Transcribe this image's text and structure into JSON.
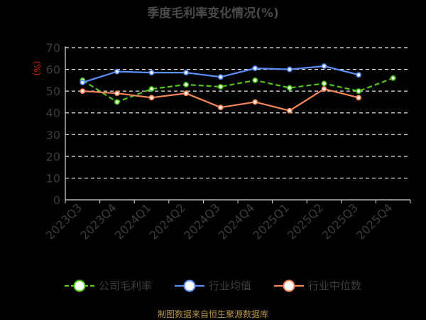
{
  "chart_data": {
    "type": "line",
    "title": "季度毛利率变化情况(%)",
    "ylabel": "(%)",
    "categories": [
      "2023Q3",
      "2023Q4",
      "2024Q1",
      "2024Q2",
      "2024Q3",
      "2024Q4",
      "2025Q1",
      "2025Q2",
      "2025Q3",
      "2025Q4"
    ],
    "yticks": [
      0,
      10,
      20,
      30,
      40,
      50,
      60,
      70
    ],
    "ylim": [
      0,
      70
    ],
    "grid": true,
    "legend_position": "bottom",
    "series": [
      {
        "name": "公司毛利率",
        "color": "#52c41a",
        "values": [
          55,
          45,
          51,
          53,
          52,
          55,
          51.5,
          53.5,
          50,
          56
        ]
      },
      {
        "name": "行业均值",
        "color": "#5b8ff9",
        "values": [
          54,
          59,
          58.5,
          58.5,
          56.5,
          60.5,
          60,
          61.5,
          57.5,
          null
        ]
      },
      {
        "name": "行业中位数",
        "color": "#f6875a",
        "values": [
          50,
          49,
          47,
          49,
          42.5,
          45,
          41,
          51,
          47,
          null
        ]
      }
    ]
  },
  "source_note": "制图数据来自恒生聚源数据库"
}
